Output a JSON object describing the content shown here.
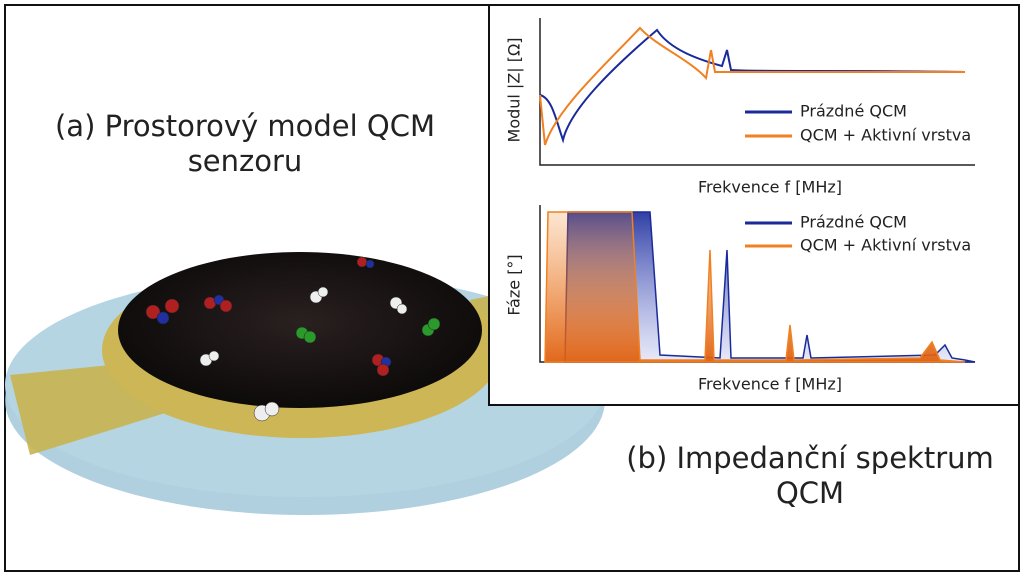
{
  "caption_a": {
    "lines": [
      "(a) Prostorový model QCM",
      "senzoru"
    ]
  },
  "top_chart": {
    "y_label": "Modul |Z| [Ω]",
    "x_label": "Frekvence f [MHz]",
    "legend": [
      "Prázdné QCM",
      "QCM + Aktivní vrstva"
    ]
  },
  "bottom_chart": {
    "y_label": "Fáze [°]",
    "x_label": "Frekvence f [MHz]",
    "legend": [
      "Prázdné QCM",
      "QCM + Aktivní vrstva"
    ]
  },
  "caption_b": {
    "lines": [
      "(b) Impedanční spektrum",
      "QCM"
    ]
  }
}
